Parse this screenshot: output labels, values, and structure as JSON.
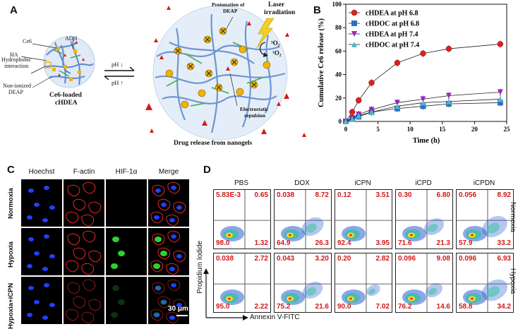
{
  "panels": {
    "A": "A",
    "B": "B",
    "C": "C",
    "D": "D"
  },
  "schematic": {
    "ce6": "Ce6",
    "adh": "ADH",
    "ha": "HA",
    "hydrophobic": "Hydrophobic",
    "interaction": "interaction",
    "non_ionized_1": "Non-ionized",
    "non_ionized_2": "DEAP",
    "loaded_1": "Ce6-loaded",
    "loaded_2": "cHDEA",
    "ph_down": "pH ↓",
    "ph_up": "pH ↑",
    "protonation_1": "Protonation of",
    "protonation_2": "DEAP",
    "laser_1": "Laser",
    "laser_2": "irradiation",
    "o2_triplet": "³O₂",
    "o2_singlet": "¹O₂",
    "electro_1": "Electrostatic",
    "electro_2": "repulsion",
    "release": "Drug release from nanogels"
  },
  "chart_data": {
    "type": "line",
    "ylabel": "Cumulative Ce6 release (%)",
    "xlabel": "Time (h)",
    "xlim": [
      0,
      25
    ],
    "ylim": [
      0,
      100
    ],
    "xticks": [
      "0",
      "5",
      "10",
      "15",
      "20",
      "25"
    ],
    "yticks": [
      "0",
      "20",
      "40",
      "60",
      "80",
      "100"
    ],
    "legend_position": "top-left",
    "series": [
      {
        "name": "cHDEA  at pH 6.8",
        "color": "#e02020",
        "marker": "circle",
        "x": [
          0,
          1,
          2,
          4,
          8,
          12,
          16,
          24
        ],
        "y": [
          0,
          8,
          18,
          33,
          50,
          58,
          62,
          66
        ]
      },
      {
        "name": "cHDOC  at pH 6.8",
        "color": "#2a72c8",
        "marker": "square",
        "x": [
          0,
          1,
          2,
          4,
          8,
          12,
          16,
          24
        ],
        "y": [
          0,
          2,
          4,
          8,
          11,
          13,
          15,
          16
        ]
      },
      {
        "name": "cHDEA  at pH 7.4",
        "color": "#a020c0",
        "marker": "triangle-down",
        "x": [
          0,
          1,
          2,
          4,
          8,
          12,
          16,
          24
        ],
        "y": [
          0,
          3,
          6,
          10,
          16,
          19,
          22,
          25
        ]
      },
      {
        "name": "cHDOC  at pH 7.4",
        "color": "#50b8c8",
        "marker": "triangle-up",
        "x": [
          0,
          1,
          2,
          4,
          8,
          12,
          16,
          24
        ],
        "y": [
          0,
          2,
          5,
          8,
          13,
          16,
          17,
          19
        ]
      }
    ]
  },
  "microscopy": {
    "columns": [
      "Hoechst",
      "F-actin",
      "HIF-1α",
      "Merge"
    ],
    "rows": [
      "Normoxia",
      "Hypoxia",
      "Hypoxia+iCPN"
    ],
    "scale": "30 μm"
  },
  "flow": {
    "columns": [
      "PBS",
      "DOX",
      "iCPN",
      "iCPD",
      "iCPDN"
    ],
    "rows": [
      "Normoxia",
      "Hypoxia"
    ],
    "yaxis": "Propidium Iodide",
    "xaxis": "Annexin V-FITC",
    "quadrants": [
      [
        [
          "5.83E-3",
          "0.65",
          "98.0",
          "1.32"
        ],
        [
          "0.038",
          "8.72",
          "64.9",
          "26.3"
        ],
        [
          "0.12",
          "3.51",
          "92.4",
          "3.95"
        ],
        [
          "0.30",
          "6.80",
          "71.6",
          "21.3"
        ],
        [
          "0.056",
          "8.92",
          "57.9",
          "33.2"
        ]
      ],
      [
        [
          "0.038",
          "2.72",
          "95.0",
          "2.22"
        ],
        [
          "0.043",
          "3.20",
          "75.2",
          "21.6"
        ],
        [
          "0.20",
          "2.82",
          "90.0",
          "7.02"
        ],
        [
          "0.096",
          "9.08",
          "76.2",
          "14.6"
        ],
        [
          "0.096",
          "6.93",
          "58.8",
          "34.2"
        ]
      ]
    ]
  }
}
